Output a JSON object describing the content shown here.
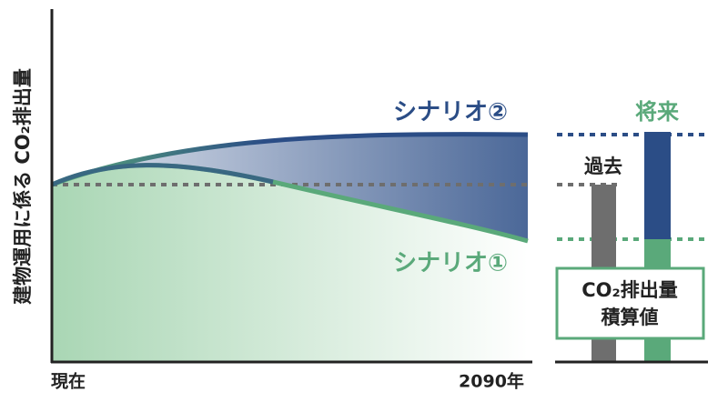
{
  "y_axis_label": "建物運用に係る CO₂排出量",
  "x_axis": {
    "start": "現在",
    "end": "2090年"
  },
  "scenarios": [
    {
      "label": "シナリオ②"
    },
    {
      "label": "シナリオ①"
    }
  ],
  "bars": {
    "past": "過去",
    "future": "将来",
    "box": [
      "CO₂排出量",
      "積算値"
    ]
  }
}
